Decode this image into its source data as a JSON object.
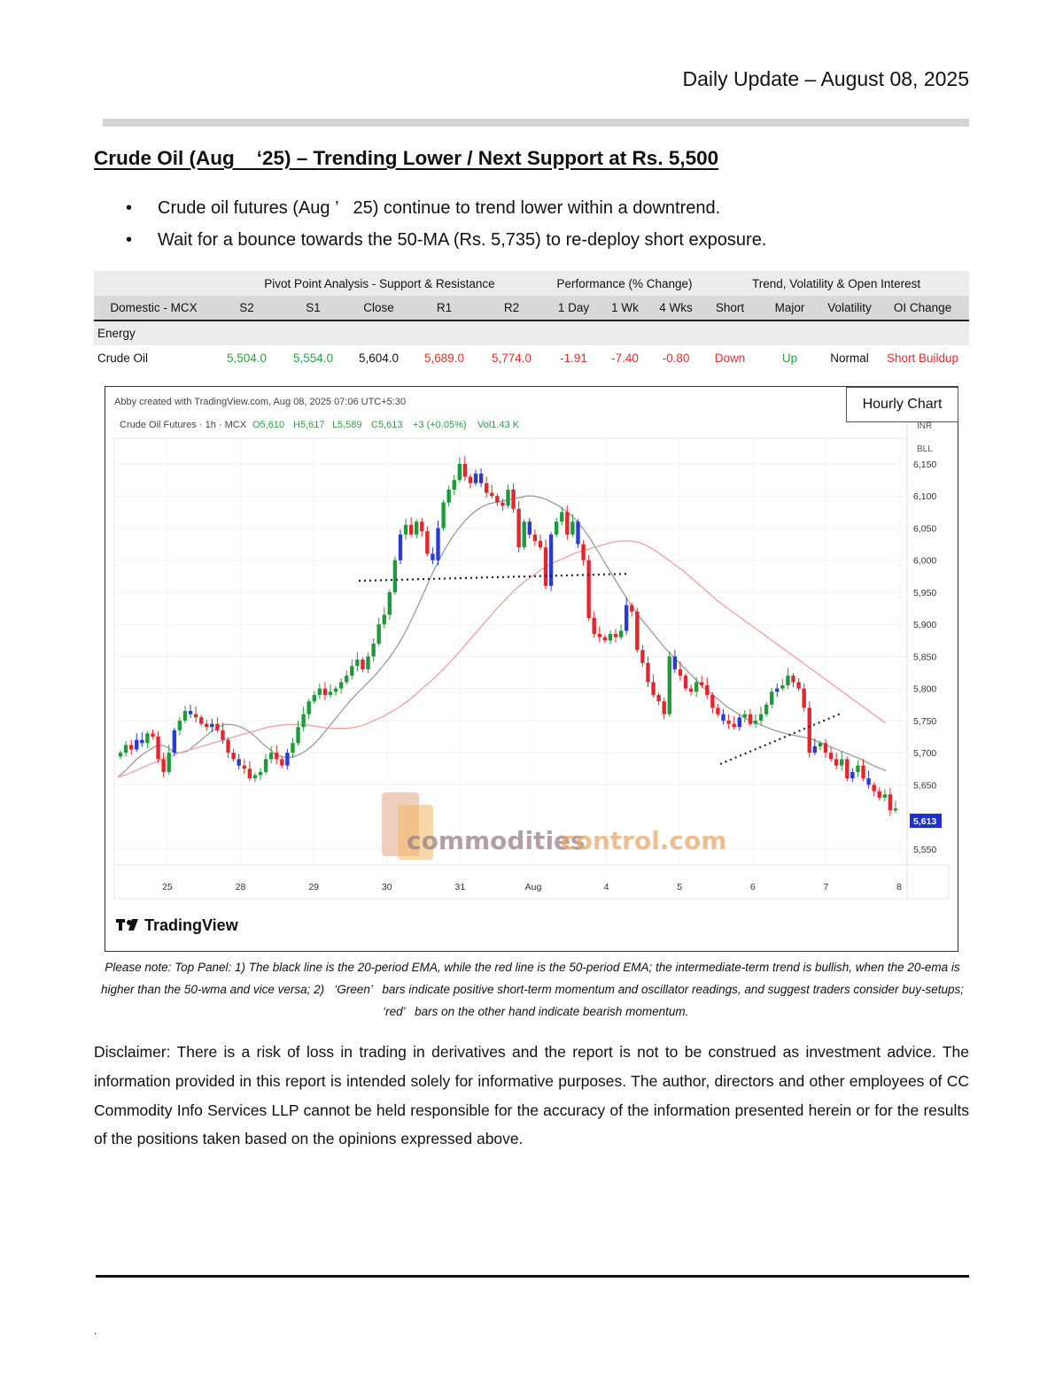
{
  "header": {
    "date_line": "Daily Update – August 08, 2025"
  },
  "title": "Crude Oil (Aug    ‘25) – Trending Lower / Next Support at Rs. 5,500",
  "bullets": [
    "Crude oil futures (Aug ’   25) continue to trend lower within a downtrend.",
    "Wait for a bounce towards the 50-MA (Rs. 5,735) to re-deploy short exposure."
  ],
  "table": {
    "group_headers": [
      "Pivot Point Analysis - Support & Resistance",
      "Performance (% Change)",
      "Trend, Volatility & Open Interest"
    ],
    "columns": [
      "Domestic - MCX",
      "S2",
      "S1",
      "Close",
      "R1",
      "R2",
      "1 Day",
      "1 Wk",
      "4 Wks",
      "Short",
      "Major",
      "Volatility",
      "OI Change"
    ],
    "section": "Energy",
    "row": [
      "Crude Oil",
      "5,504.0",
      "5,554.0",
      "5,604.0",
      "5,689.0",
      "5,774.0",
      "-1.91",
      "-7.40",
      "-0.80",
      "Down",
      "Up",
      "Normal",
      "Short Buildup"
    ],
    "colors": {
      "green": "#2e9e44",
      "red": "#e0302f"
    }
  },
  "chart": {
    "badge": "Hourly Chart",
    "created_line": "Abby created with TradingView.com, Aug 08, 2025 07:06 UTC+5:30",
    "symbol": "Crude Oil Futures · 1h · MCX",
    "ohlc": {
      "o": "O5,610",
      "h": "H5,617",
      "l": "L5,589",
      "c": "C5,613",
      "chg": "+3 (+0.05%)",
      "vol": "Vol1.43 K"
    },
    "currency": "INR",
    "unit": "BLL",
    "price_tag": "5,613",
    "watermark_a": "commodities",
    "watermark_b": "control.com",
    "logo_text": "TradingView"
  },
  "chart_data": {
    "type": "candlestick",
    "title": "",
    "x_ticks": [
      "25",
      "28",
      "29",
      "30",
      "31",
      "Aug",
      "4",
      "5",
      "6",
      "7",
      "8"
    ],
    "y_ticks": [
      "6,150",
      "6,100",
      "6,050",
      "6,000",
      "5,950",
      "5,900",
      "5,850",
      "5,800",
      "5,750",
      "5,700",
      "5,650",
      "5,550"
    ],
    "ylim": [
      5525,
      6190
    ],
    "last_price": 5613,
    "close_path": [
      5700,
      5712,
      5705,
      5720,
      5715,
      5730,
      5725,
      5690,
      5670,
      5700,
      5735,
      5750,
      5765,
      5760,
      5755,
      5745,
      5740,
      5745,
      5735,
      5720,
      5700,
      5690,
      5680,
      5675,
      5660,
      5665,
      5670,
      5690,
      5700,
      5690,
      5680,
      5700,
      5715,
      5740,
      5760,
      5780,
      5790,
      5800,
      5790,
      5795,
      5800,
      5810,
      5820,
      5835,
      5845,
      5830,
      5850,
      5870,
      5900,
      5915,
      5950,
      6000,
      6040,
      6055,
      6040,
      6060,
      6045,
      6010,
      6000,
      6050,
      6090,
      6110,
      6125,
      6150,
      6130,
      6120,
      6135,
      6120,
      6105,
      6100,
      6090,
      6085,
      6110,
      6080,
      6020,
      6060,
      6040,
      6030,
      6020,
      5960,
      6040,
      6060,
      6075,
      6040,
      6060,
      6025,
      6000,
      5910,
      5885,
      5880,
      5875,
      5885,
      5880,
      5890,
      5930,
      5920,
      5860,
      5840,
      5810,
      5790,
      5780,
      5760,
      5850,
      5830,
      5820,
      5800,
      5795,
      5810,
      5805,
      5790,
      5770,
      5760,
      5750,
      5745,
      5740,
      5755,
      5760,
      5745,
      5750,
      5760,
      5775,
      5795,
      5800,
      5805,
      5820,
      5810,
      5800,
      5770,
      5700,
      5710,
      5715,
      5700,
      5690,
      5680,
      5690,
      5660,
      5670,
      5680,
      5660,
      5650,
      5640,
      5630,
      5635,
      5610,
      5613
    ],
    "series": [
      {
        "name": "",
        "values": [
          5662,
          5670,
          5680,
          5690,
          5698,
          5704,
          5710,
          5712,
          5708,
          5700,
          5700,
          5702,
          5710,
          5718,
          5726,
          5734,
          5740,
          5744,
          5744,
          5742,
          5738,
          5732,
          5724,
          5714,
          5706,
          5698,
          5694,
          5692,
          5694,
          5698,
          5704,
          5712,
          5722,
          5734,
          5746,
          5758,
          5770,
          5782,
          5792,
          5802,
          5812,
          5822,
          5834,
          5846,
          5860,
          5876,
          5894,
          5914,
          5936,
          5958,
          5980,
          6000,
          6018,
          6034,
          6048,
          6060,
          6070,
          6078,
          6084,
          6088,
          6090,
          6092,
          6094,
          6096,
          6098,
          6100,
          6100,
          6098,
          6095,
          6090,
          6085,
          6078,
          6070,
          6060,
          6048,
          6034,
          6018,
          6002,
          5986,
          5970,
          5954,
          5938,
          5924,
          5910,
          5898,
          5886,
          5874,
          5862,
          5852,
          5842,
          5832,
          5822,
          5812,
          5802,
          5794,
          5786,
          5778,
          5770,
          5764,
          5758,
          5752,
          5748,
          5744,
          5740,
          5736,
          5733,
          5730,
          5728,
          5726,
          5724,
          5722,
          5718,
          5714,
          5710,
          5706,
          5702,
          5698,
          5694,
          5690,
          5685,
          5680,
          5676,
          5672
        ]
      },
      {
        "name": "",
        "values": [
          5662,
          5666,
          5672,
          5678,
          5684,
          5690,
          5695,
          5700,
          5704,
          5708,
          5712,
          5716,
          5720,
          5724,
          5728,
          5732,
          5736,
          5740,
          5742,
          5744,
          5744,
          5744,
          5742,
          5740,
          5738,
          5738,
          5738,
          5740,
          5744,
          5750,
          5756,
          5764,
          5772,
          5782,
          5794,
          5806,
          5818,
          5832,
          5846,
          5862,
          5878,
          5894,
          5910,
          5926,
          5940,
          5954,
          5966,
          5976,
          5986,
          5994,
          6000,
          6006,
          6012,
          6016,
          6020,
          6024,
          6028,
          6030,
          6030,
          6028,
          6022,
          6014,
          6004,
          5994,
          5984,
          5972,
          5960,
          5948,
          5936,
          5926,
          5916,
          5906,
          5896,
          5886,
          5876,
          5866,
          5856,
          5846,
          5836,
          5826,
          5816,
          5806,
          5796,
          5786,
          5776,
          5766,
          5756,
          5746
        ]
      }
    ],
    "annotations": [
      "dotted support line ~5,992 (Jul 30–Aug 4)",
      "dotted trendline Aug 6–7"
    ]
  }
}
